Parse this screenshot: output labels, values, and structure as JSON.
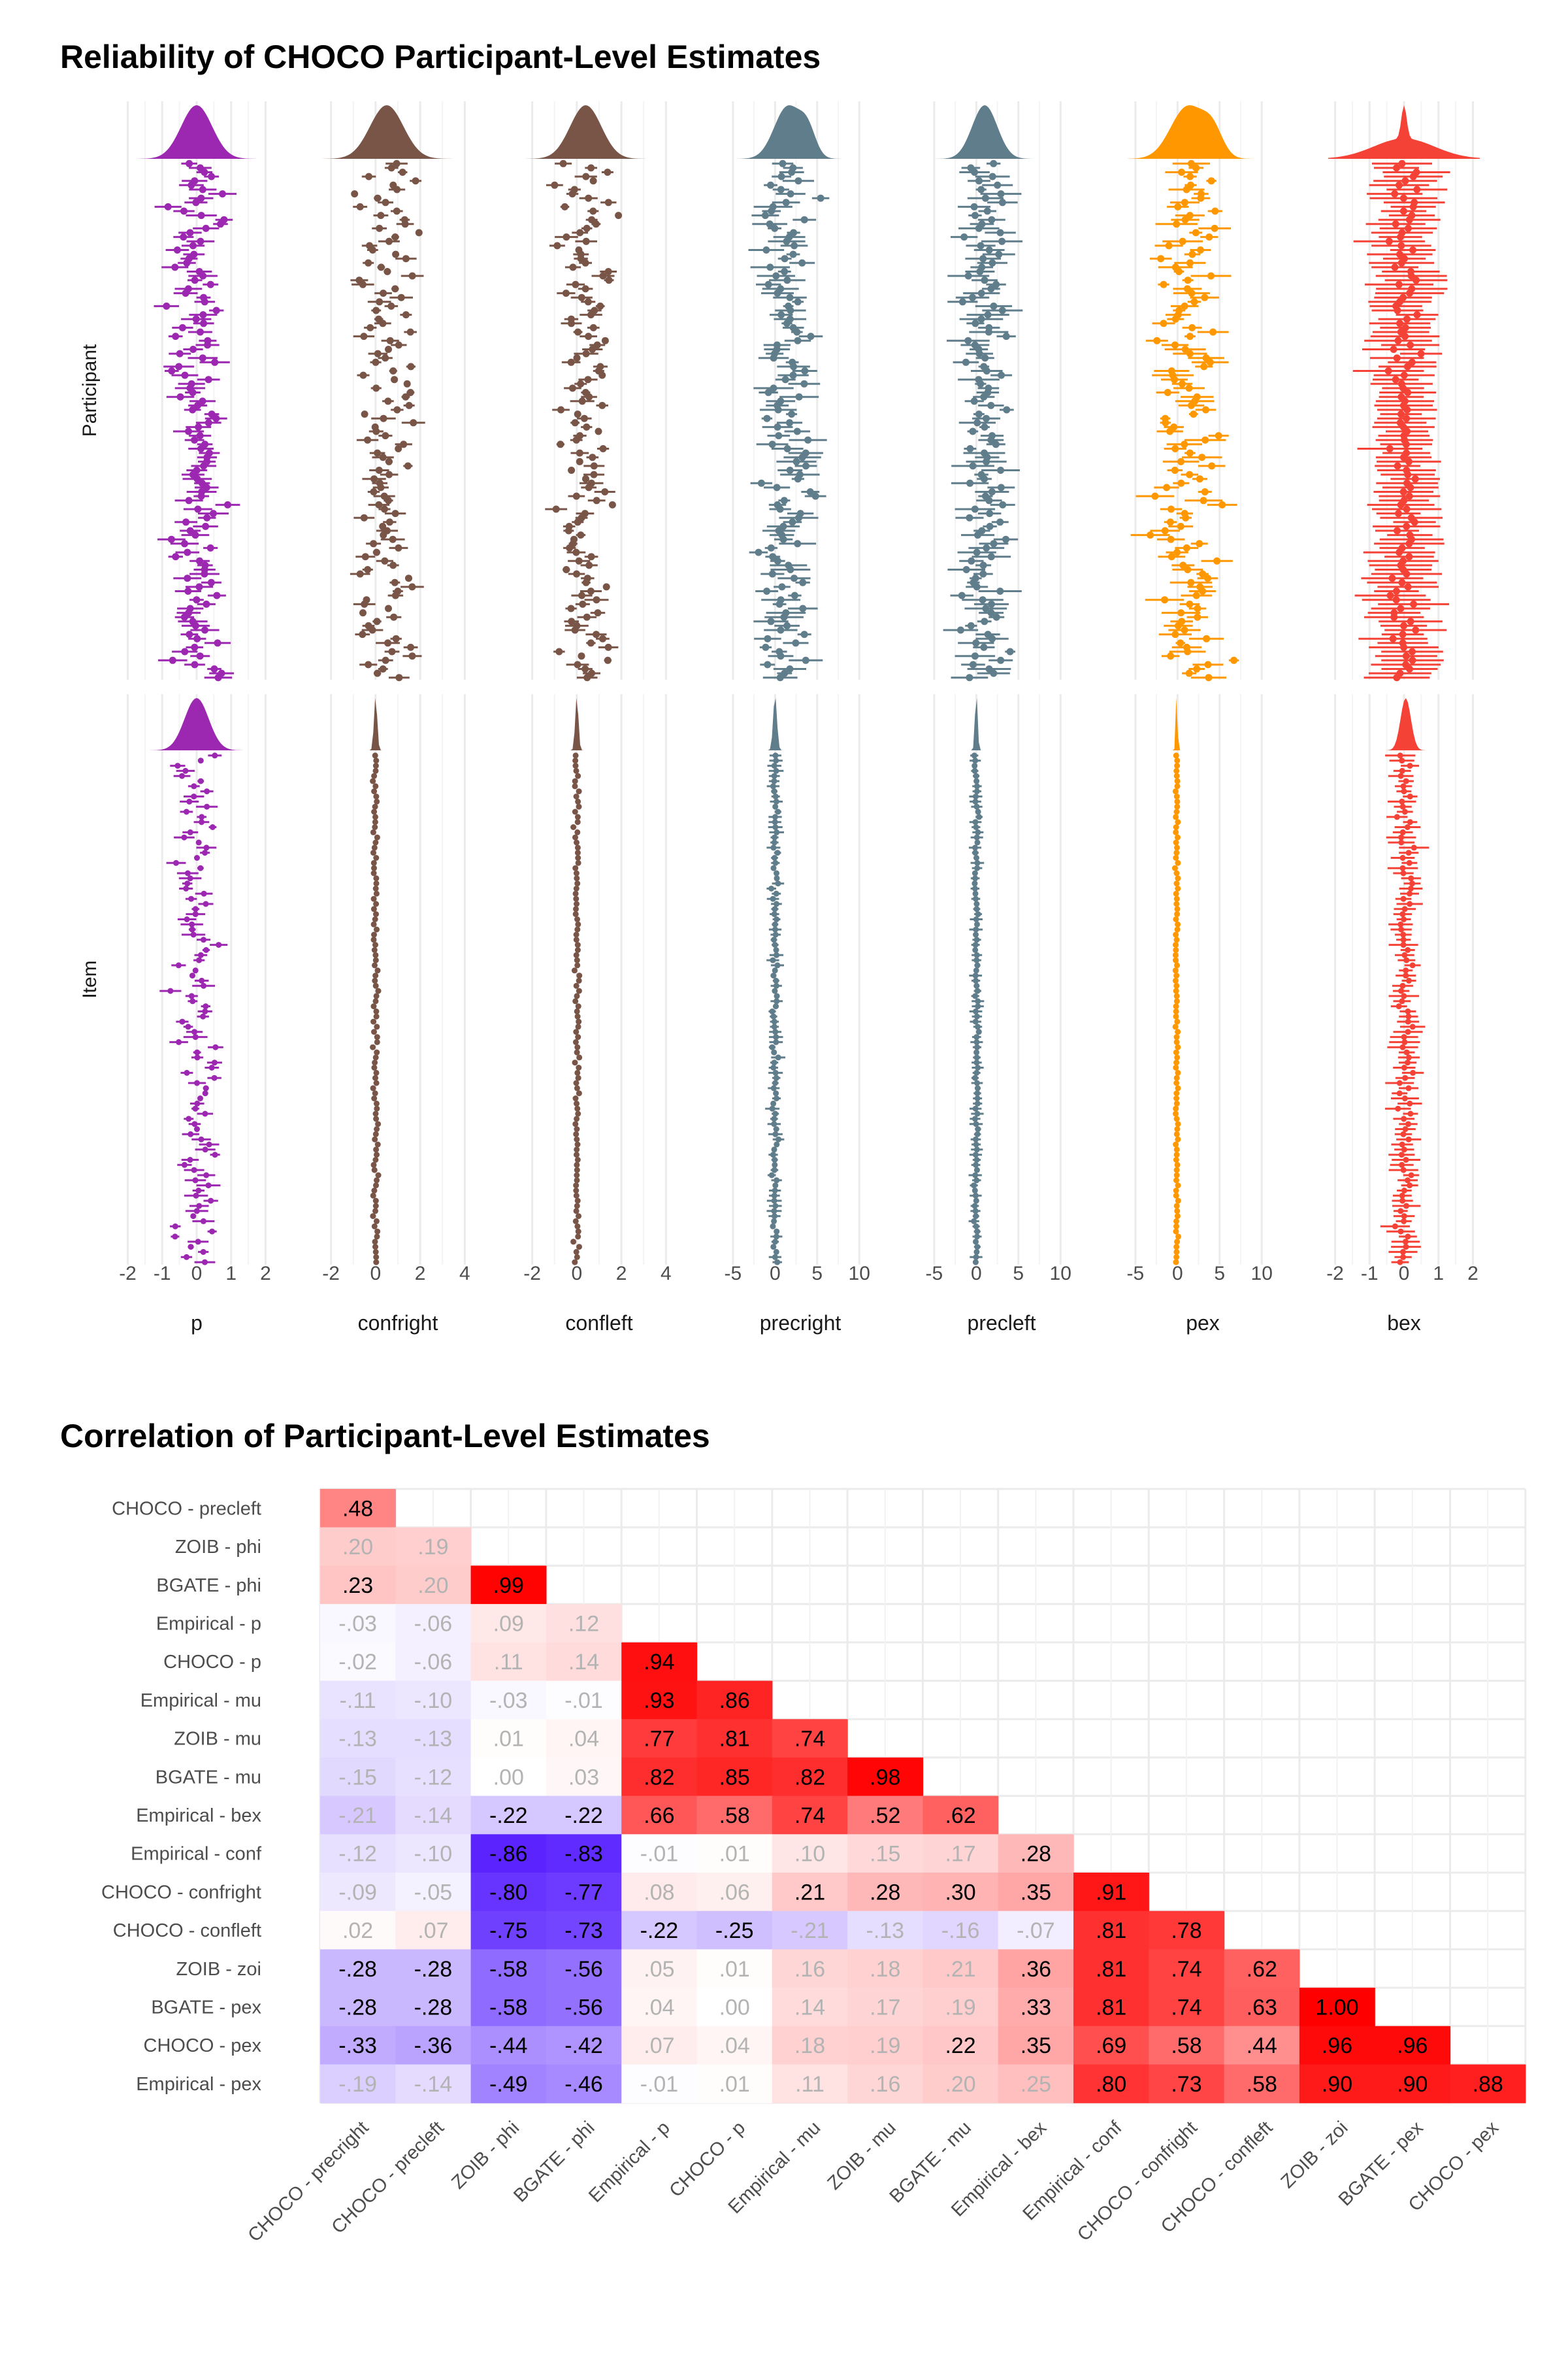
{
  "titles": {
    "top": "Reliability of CHOCO Participant-Level Estimates",
    "bottom": "Correlation of Participant-Level Estimates"
  },
  "colors": {
    "p": "#9c27b0",
    "confright": "#795548",
    "confleft": "#795548",
    "precright": "#607d8b",
    "precleft": "#607d8b",
    "pex": "#ff9800",
    "bex": "#f44336",
    "heat_pos": "#ff0000",
    "heat_neg": "#4000ff",
    "grid": "#ebebeb"
  },
  "chart_data": [
    {
      "type": "scatter",
      "title": "Reliability of CHOCO Participant-Level Estimates",
      "subtype": "faceted point-range with density",
      "row_labels": [
        "Participant",
        "Item"
      ],
      "facets": [
        {
          "name": "p",
          "ticks": [
            "-2",
            "-1",
            "0",
            "1",
            "2"
          ],
          "xlim": [
            -2.2,
            2.2
          ]
        },
        {
          "name": "confright",
          "ticks": [
            "-2",
            "0",
            "2",
            "4"
          ],
          "xlim": [
            -2.4,
            4.4
          ]
        },
        {
          "name": "confleft",
          "ticks": [
            "-2",
            "0",
            "2",
            "4"
          ],
          "xlim": [
            -2.4,
            4.4
          ]
        },
        {
          "name": "precright",
          "ticks": [
            "-5",
            "0",
            "5",
            "10"
          ],
          "xlim": [
            -6,
            12
          ]
        },
        {
          "name": "precleft",
          "ticks": [
            "-5",
            "0",
            "5",
            "10"
          ],
          "xlim": [
            -6,
            12
          ]
        },
        {
          "name": "pex",
          "ticks": [
            "-5",
            "0",
            "5",
            "10"
          ],
          "xlim": [
            -6,
            12
          ]
        },
        {
          "name": "bex",
          "ticks": [
            "-2",
            "-1",
            "0",
            "1",
            "2"
          ],
          "xlim": [
            -2.2,
            2.2
          ]
        }
      ]
    },
    {
      "type": "heatmap",
      "title": "Correlation of Participant-Level Estimates",
      "columns": [
        "CHOCO - precright",
        "CHOCO - precleft",
        "ZOIB - phi",
        "BGATE - phi",
        "Empirical - p",
        "CHOCO - p",
        "Empirical - mu",
        "ZOIB - mu",
        "BGATE - mu",
        "Empirical - bex",
        "Empirical - conf",
        "CHOCO - confright",
        "CHOCO - confleft",
        "ZOIB - zoi",
        "BGATE - pex",
        "CHOCO - pex"
      ],
      "rows": [
        "CHOCO - precleft",
        "ZOIB - phi",
        "BGATE - phi",
        "Empirical - p",
        "CHOCO - p",
        "Empirical - mu",
        "ZOIB - mu",
        "BGATE - mu",
        "Empirical - bex",
        "Empirical - conf",
        "CHOCO - confright",
        "CHOCO - confleft",
        "ZOIB - zoi",
        "BGATE - pex",
        "CHOCO - pex",
        "Empirical - pex"
      ],
      "values": [
        [
          0.48
        ],
        [
          0.2,
          0.19
        ],
        [
          0.23,
          0.2,
          0.99
        ],
        [
          -0.03,
          -0.06,
          0.09,
          0.12
        ],
        [
          -0.02,
          -0.06,
          0.11,
          0.14,
          0.94
        ],
        [
          -0.11,
          -0.1,
          -0.03,
          -0.01,
          0.93,
          0.86
        ],
        [
          -0.13,
          -0.13,
          0.01,
          0.04,
          0.77,
          0.81,
          0.74
        ],
        [
          -0.15,
          -0.12,
          0.0,
          0.03,
          0.82,
          0.85,
          0.82,
          0.98
        ],
        [
          -0.21,
          -0.14,
          -0.22,
          -0.22,
          0.66,
          0.58,
          0.74,
          0.52,
          0.62
        ],
        [
          -0.12,
          -0.1,
          -0.86,
          -0.83,
          -0.01,
          0.01,
          0.1,
          0.15,
          0.17,
          0.28
        ],
        [
          -0.09,
          -0.05,
          -0.8,
          -0.77,
          0.08,
          0.06,
          0.21,
          0.28,
          0.3,
          0.35,
          0.91
        ],
        [
          0.02,
          0.07,
          -0.75,
          -0.73,
          -0.22,
          -0.25,
          -0.21,
          -0.13,
          -0.16,
          -0.07,
          0.81,
          0.78
        ],
        [
          -0.28,
          -0.28,
          -0.58,
          -0.56,
          0.05,
          0.01,
          0.16,
          0.18,
          0.21,
          0.36,
          0.81,
          0.74,
          0.62
        ],
        [
          -0.28,
          -0.28,
          -0.58,
          -0.56,
          0.04,
          0.0,
          0.14,
          0.17,
          0.19,
          0.33,
          0.81,
          0.74,
          0.63,
          1.0
        ],
        [
          -0.33,
          -0.36,
          -0.44,
          -0.42,
          0.07,
          0.04,
          0.18,
          0.19,
          0.22,
          0.35,
          0.69,
          0.58,
          0.44,
          0.96,
          0.96
        ],
        [
          -0.19,
          -0.14,
          -0.49,
          -0.46,
          -0.01,
          0.01,
          0.11,
          0.16,
          0.2,
          0.25,
          0.8,
          0.73,
          0.58,
          0.9,
          0.9,
          0.88
        ]
      ],
      "labels": [
        [
          ".48"
        ],
        [
          ".20",
          ".19"
        ],
        [
          ".23",
          ".20",
          ".99"
        ],
        [
          "-.03",
          "-.06",
          ".09",
          ".12"
        ],
        [
          "-.02",
          "-.06",
          ".11",
          ".14",
          ".94"
        ],
        [
          "-.11",
          "-.10",
          "-.03",
          "-.01",
          ".93",
          ".86"
        ],
        [
          "-.13",
          "-.13",
          ".01",
          ".04",
          ".77",
          ".81",
          ".74"
        ],
        [
          "-.15",
          "-.12",
          ".00",
          ".03",
          ".82",
          ".85",
          ".82",
          ".98"
        ],
        [
          "-.21",
          "-.14",
          "-.22",
          "-.22",
          ".66",
          ".58",
          ".74",
          ".52",
          ".62"
        ],
        [
          "-.12",
          "-.10",
          "-.86",
          "-.83",
          "-.01",
          ".01",
          ".10",
          ".15",
          ".17",
          ".28"
        ],
        [
          "-.09",
          "-.05",
          "-.80",
          "-.77",
          ".08",
          ".06",
          ".21",
          ".28",
          ".30",
          ".35",
          ".91"
        ],
        [
          ".02",
          ".07",
          "-.75",
          "-.73",
          "-.22",
          "-.25",
          "-.21",
          "-.13",
          "-.16",
          "-.07",
          ".81",
          ".78"
        ],
        [
          "-.28",
          "-.28",
          "-.58",
          "-.56",
          ".05",
          ".01",
          ".16",
          ".18",
          ".21",
          ".36",
          ".81",
          ".74",
          ".62"
        ],
        [
          "-.28",
          "-.28",
          "-.58",
          "-.56",
          ".04",
          ".00",
          ".14",
          ".17",
          ".19",
          ".33",
          ".81",
          ".74",
          ".63",
          "1.00"
        ],
        [
          "-.33",
          "-.36",
          "-.44",
          "-.42",
          ".07",
          ".04",
          ".18",
          ".19",
          ".22",
          ".35",
          ".69",
          ".58",
          ".44",
          ".96",
          ".96"
        ],
        [
          "-.19",
          "-.14",
          "-.49",
          "-.46",
          "-.01",
          ".01",
          ".11",
          ".16",
          ".20",
          ".25",
          ".80",
          ".73",
          ".58",
          ".90",
          ".90",
          ".88"
        ]
      ],
      "significant": [
        [
          1
        ],
        [
          0,
          0
        ],
        [
          1,
          0,
          1
        ],
        [
          0,
          0,
          0,
          0
        ],
        [
          0,
          0,
          0,
          0,
          1
        ],
        [
          0,
          0,
          0,
          0,
          1,
          1
        ],
        [
          0,
          0,
          0,
          0,
          1,
          1,
          1
        ],
        [
          0,
          0,
          0,
          0,
          1,
          1,
          1,
          1
        ],
        [
          0,
          0,
          1,
          1,
          1,
          1,
          1,
          1,
          1
        ],
        [
          0,
          0,
          1,
          1,
          0,
          0,
          0,
          0,
          0,
          1
        ],
        [
          0,
          0,
          1,
          1,
          0,
          0,
          1,
          1,
          1,
          1,
          1
        ],
        [
          0,
          0,
          1,
          1,
          1,
          1,
          0,
          0,
          0,
          0,
          1,
          1
        ],
        [
          1,
          1,
          1,
          1,
          0,
          0,
          0,
          0,
          0,
          1,
          1,
          1,
          1
        ],
        [
          1,
          1,
          1,
          1,
          0,
          0,
          0,
          0,
          0,
          1,
          1,
          1,
          1,
          1
        ],
        [
          1,
          1,
          1,
          1,
          0,
          0,
          0,
          0,
          1,
          1,
          1,
          1,
          1,
          1,
          1
        ],
        [
          0,
          0,
          1,
          1,
          0,
          0,
          0,
          0,
          0,
          0,
          1,
          1,
          1,
          1,
          1,
          1
        ]
      ]
    }
  ]
}
